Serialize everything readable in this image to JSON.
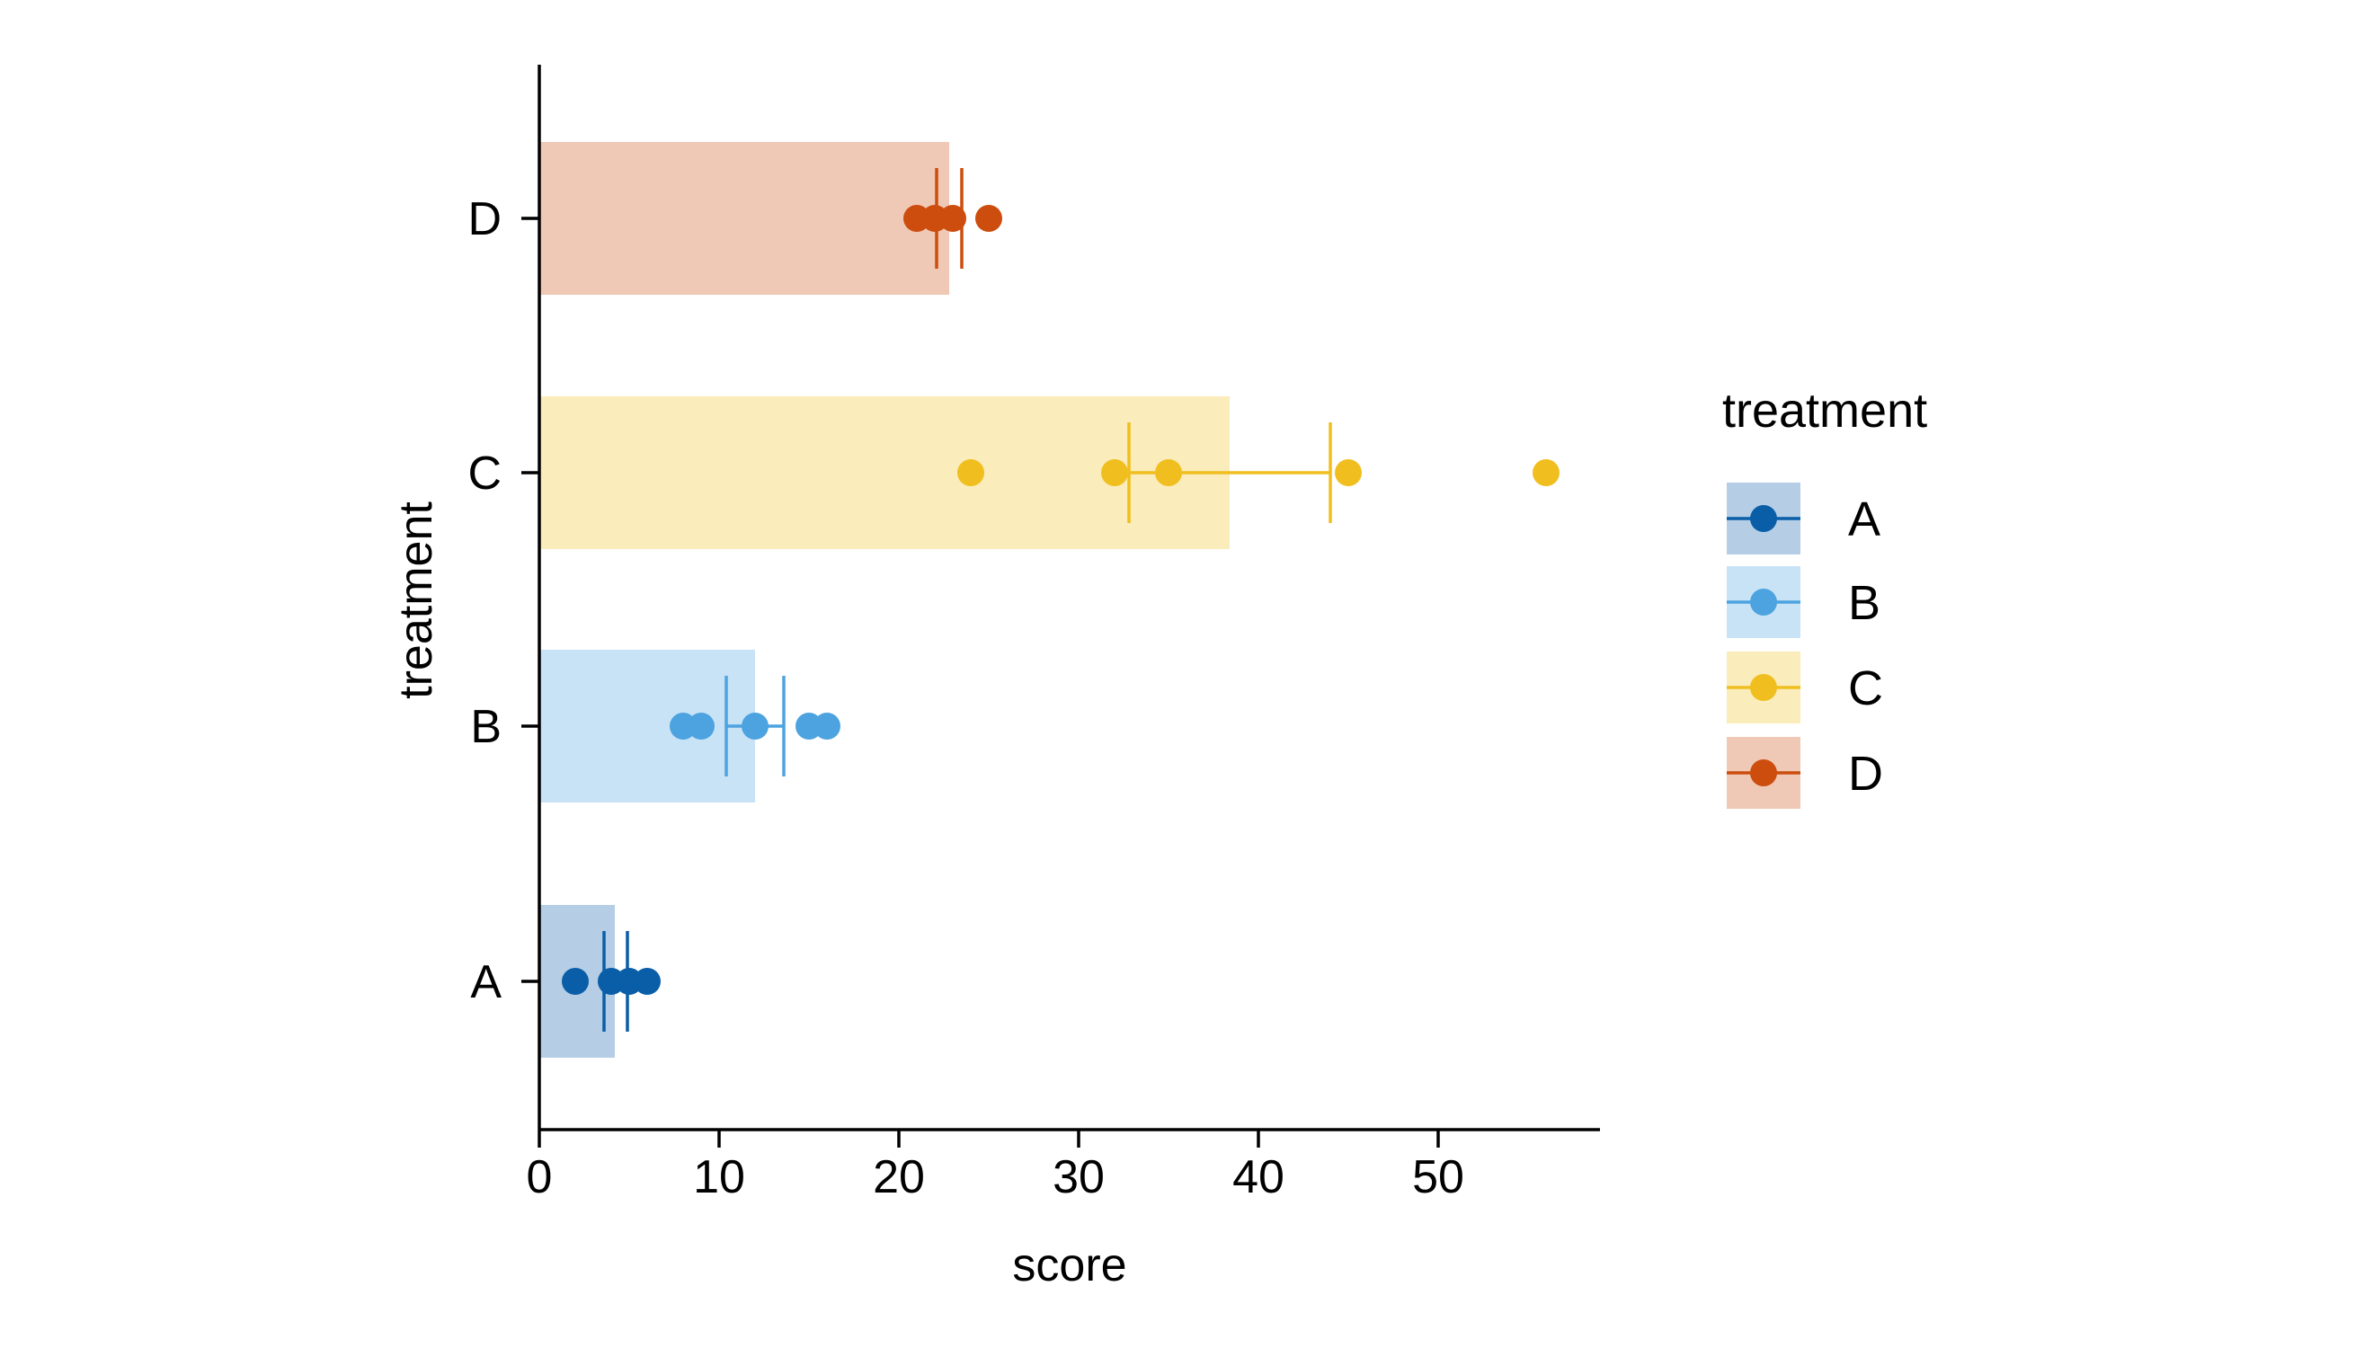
{
  "chart_data": {
    "type": "bar",
    "orientation": "horizontal",
    "title": "",
    "xlabel": "score",
    "ylabel": "treatment",
    "xlim": [
      0,
      59
    ],
    "x_ticks": [
      0,
      10,
      20,
      30,
      40,
      50
    ],
    "x_tick_labels": [
      "0",
      "10",
      "20",
      "30",
      "40",
      "50"
    ],
    "categories": [
      "A",
      "B",
      "C",
      "D"
    ],
    "bar_values": [
      4.2,
      12.0,
      38.4,
      22.8
    ],
    "error_bars": [
      {
        "low": 3.6,
        "high": 4.9
      },
      {
        "low": 10.4,
        "high": 13.6
      },
      {
        "low": 32.8,
        "high": 44.0
      },
      {
        "low": 22.1,
        "high": 23.5
      }
    ],
    "points": [
      [
        2,
        4,
        5,
        6
      ],
      [
        8,
        9,
        12,
        15,
        16
      ],
      [
        24,
        32,
        35,
        45,
        56
      ],
      [
        21,
        22,
        23,
        25
      ]
    ],
    "colors": [
      "#0a5ea8",
      "#4da3e0",
      "#f0bf1f",
      "#cc4d0e"
    ],
    "legend": {
      "title": "treatment",
      "entries": [
        "A",
        "B",
        "C",
        "D"
      ],
      "placement": "right"
    },
    "grid": false
  }
}
